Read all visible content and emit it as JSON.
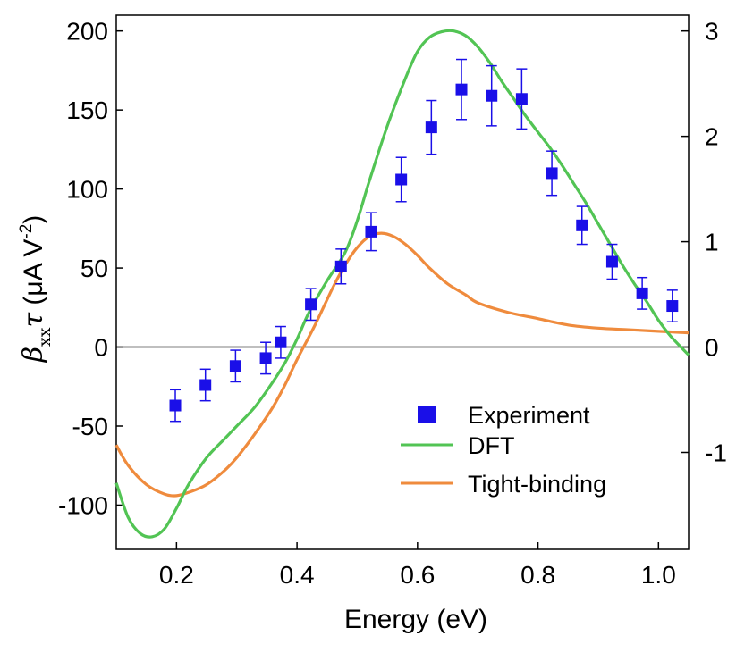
{
  "chart_data": {
    "type": "line",
    "xlabel": "Energy (eV)",
    "ylabel": {
      "symbol": "β",
      "subscript": "xx",
      "tau": "τ",
      "units_open": " (μA V",
      "units_exp": "-2",
      "units_close": ")"
    },
    "xlim": [
      0.1,
      1.05
    ],
    "ylim": [
      -128,
      210
    ],
    "y2lim": [
      -1.92,
      3.15
    ],
    "x_ticks": [
      0.2,
      0.4,
      0.6,
      0.8,
      1.0
    ],
    "x_tick_labels": [
      "0.2",
      "0.4",
      "0.6",
      "0.8",
      "1.0"
    ],
    "y_ticks": [
      -100,
      -50,
      0,
      50,
      100,
      150,
      200
    ],
    "y_tick_labels": [
      "-100",
      "-50",
      "0",
      "50",
      "100",
      "150",
      "200"
    ],
    "y2_ticks": [
      -1,
      0,
      1,
      2,
      3
    ],
    "y2_tick_labels": [
      "-1",
      "0",
      "1",
      "2",
      "3"
    ],
    "zero_line": true,
    "grid": false,
    "legend_position": "bottom-right",
    "series": [
      {
        "name": "Experiment",
        "kind": "points_with_errorbars",
        "color": "#1a0fe8",
        "x": [
          0.198,
          0.248,
          0.298,
          0.348,
          0.373,
          0.423,
          0.473,
          0.523,
          0.573,
          0.623,
          0.673,
          0.723,
          0.773,
          0.823,
          0.873,
          0.923,
          0.973,
          1.023
        ],
        "y": [
          -37,
          -24,
          -12,
          -7,
          3,
          27,
          51,
          73,
          106,
          139,
          163,
          159,
          157,
          110,
          77,
          54,
          34,
          26
        ],
        "err": [
          10,
          10,
          10,
          10,
          10,
          10,
          11,
          12,
          14,
          17,
          19,
          19,
          19,
          14,
          12,
          11,
          10,
          10
        ]
      },
      {
        "name": "DFT",
        "kind": "line",
        "color": "#52c454",
        "x": [
          0.1,
          0.12,
          0.14,
          0.16,
          0.18,
          0.2,
          0.22,
          0.25,
          0.28,
          0.3,
          0.33,
          0.36,
          0.38,
          0.4,
          0.42,
          0.45,
          0.48,
          0.5,
          0.52,
          0.55,
          0.58,
          0.6,
          0.62,
          0.64,
          0.66,
          0.68,
          0.7,
          0.72,
          0.74,
          0.76,
          0.78,
          0.8,
          0.82,
          0.84,
          0.86,
          0.88,
          0.9,
          0.92,
          0.94,
          0.96,
          0.98,
          1.0,
          1.02,
          1.05
        ],
        "y": [
          -86,
          -108,
          -118,
          -120,
          -115,
          -102,
          -87,
          -70,
          -58,
          -50,
          -38,
          -22,
          -10,
          5,
          22,
          42,
          60,
          80,
          105,
          140,
          170,
          187,
          196,
          199.5,
          200,
          197,
          190,
          180,
          168,
          157,
          146,
          136,
          126,
          115,
          103,
          91,
          78,
          65,
          52,
          40,
          29,
          17,
          7,
          -5
        ]
      },
      {
        "name": "Tight-binding",
        "kind": "line",
        "color": "#ef8b3d",
        "x": [
          0.1,
          0.12,
          0.15,
          0.18,
          0.2,
          0.22,
          0.25,
          0.28,
          0.3,
          0.33,
          0.36,
          0.38,
          0.4,
          0.43,
          0.46,
          0.48,
          0.5,
          0.52,
          0.54,
          0.56,
          0.58,
          0.6,
          0.62,
          0.65,
          0.68,
          0.7,
          0.75,
          0.8,
          0.85,
          0.9,
          0.95,
          1.0,
          1.05
        ],
        "y": [
          -62,
          -75,
          -87,
          -93,
          -94,
          -92,
          -87,
          -78,
          -70,
          -55,
          -38,
          -24,
          -8,
          14,
          38,
          52,
          63,
          70,
          72,
          70,
          65,
          58,
          50,
          40,
          33,
          28,
          22,
          18,
          14,
          12,
          11,
          10,
          9
        ]
      }
    ]
  }
}
